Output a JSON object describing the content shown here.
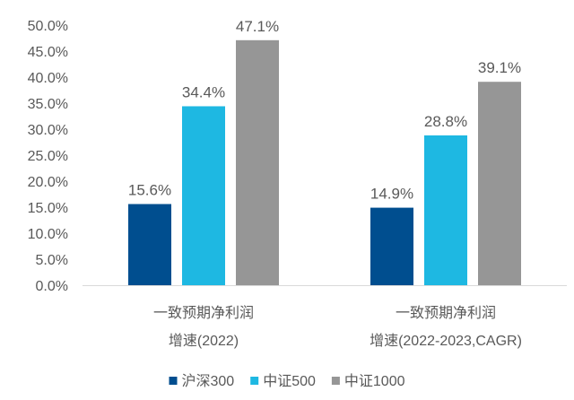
{
  "chart_data": {
    "type": "bar",
    "title": "",
    "xlabel": "",
    "ylabel": "",
    "ylim": [
      0,
      50
    ],
    "yticks": [
      "0.0%",
      "5.0%",
      "10.0%",
      "15.0%",
      "20.0%",
      "25.0%",
      "30.0%",
      "35.0%",
      "40.0%",
      "45.0%",
      "50.0%"
    ],
    "grid": false,
    "legend_position": "bottom",
    "categories": [
      {
        "line1": "一致预期净利润",
        "line2": "增速(2022)"
      },
      {
        "line1": "一致预期净利润",
        "line2": "增速(2022-2023,CAGR)"
      }
    ],
    "series": [
      {
        "name": "沪深300",
        "color": "#004e8f",
        "values": [
          15.6,
          14.9
        ],
        "labels": [
          "15.6%",
          "14.9%"
        ]
      },
      {
        "name": "中证500",
        "color": "#1eb8e2",
        "values": [
          34.4,
          28.8
        ],
        "labels": [
          "34.4%",
          "28.8%"
        ]
      },
      {
        "name": "中证1000",
        "color": "#969696",
        "values": [
          47.1,
          39.1
        ],
        "labels": [
          "47.1%",
          "39.1%"
        ]
      }
    ]
  }
}
